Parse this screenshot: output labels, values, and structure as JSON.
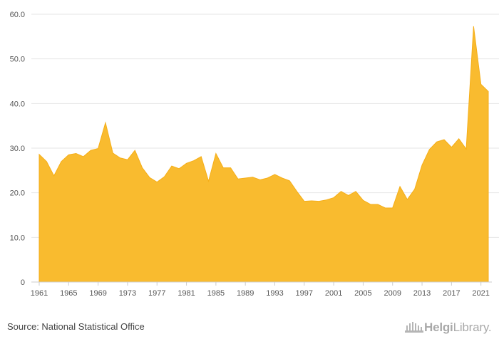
{
  "chart_data": {
    "type": "area",
    "title": "",
    "xlabel": "",
    "ylabel": "",
    "x": [
      1961,
      1962,
      1963,
      1964,
      1965,
      1966,
      1967,
      1968,
      1969,
      1970,
      1971,
      1972,
      1973,
      1974,
      1975,
      1976,
      1977,
      1978,
      1979,
      1980,
      1981,
      1982,
      1983,
      1984,
      1985,
      1986,
      1987,
      1988,
      1989,
      1990,
      1991,
      1992,
      1993,
      1994,
      1995,
      1996,
      1997,
      1998,
      1999,
      2000,
      2001,
      2002,
      2003,
      2004,
      2005,
      2006,
      2007,
      2008,
      2009,
      2010,
      2011,
      2012,
      2013,
      2014,
      2015,
      2016,
      2017,
      2018,
      2019,
      2020,
      2021,
      2022
    ],
    "values": [
      28.6,
      27.0,
      23.8,
      27.0,
      28.5,
      28.8,
      28.1,
      29.5,
      29.9,
      35.7,
      28.9,
      27.8,
      27.4,
      29.5,
      25.6,
      23.4,
      22.4,
      23.6,
      26.0,
      25.4,
      26.6,
      27.2,
      28.1,
      22.6,
      28.8,
      25.6,
      25.6,
      23.1,
      23.3,
      23.5,
      22.9,
      23.3,
      24.1,
      23.3,
      22.7,
      20.3,
      18.1,
      18.2,
      18.1,
      18.4,
      18.9,
      20.3,
      19.4,
      20.3,
      18.3,
      17.4,
      17.4,
      16.6,
      16.6,
      21.4,
      18.5,
      20.8,
      26.2,
      29.7,
      31.4,
      31.9,
      30.2,
      32.1,
      29.8,
      57.3,
      44.3,
      42.7
    ],
    "ylim": [
      0,
      60
    ],
    "yticks": [
      0,
      10,
      20,
      30,
      40,
      50,
      60
    ],
    "ytick_labels": [
      "0",
      "10.0",
      "20.0",
      "30.0",
      "40.0",
      "50.0",
      "60.0"
    ],
    "xticks": [
      1961,
      1965,
      1969,
      1973,
      1977,
      1981,
      1985,
      1989,
      1993,
      1997,
      2001,
      2005,
      2009,
      2013,
      2017,
      2021
    ],
    "xtick_labels": [
      "1961",
      "1965",
      "1969",
      "1973",
      "1977",
      "1981",
      "1985",
      "1989",
      "1993",
      "1997",
      "2001",
      "2005",
      "2009",
      "2013",
      "2017",
      "2021"
    ],
    "grid": true,
    "colors": {
      "fill": "#F9BB2F",
      "stroke": "#F5AE18",
      "grid": "#e6e6e6",
      "axis": "#cccccc"
    }
  },
  "footer": {
    "source": "Source: National Statistical Office",
    "logo_text_bold": "Helgi",
    "logo_text_light": "Library."
  }
}
